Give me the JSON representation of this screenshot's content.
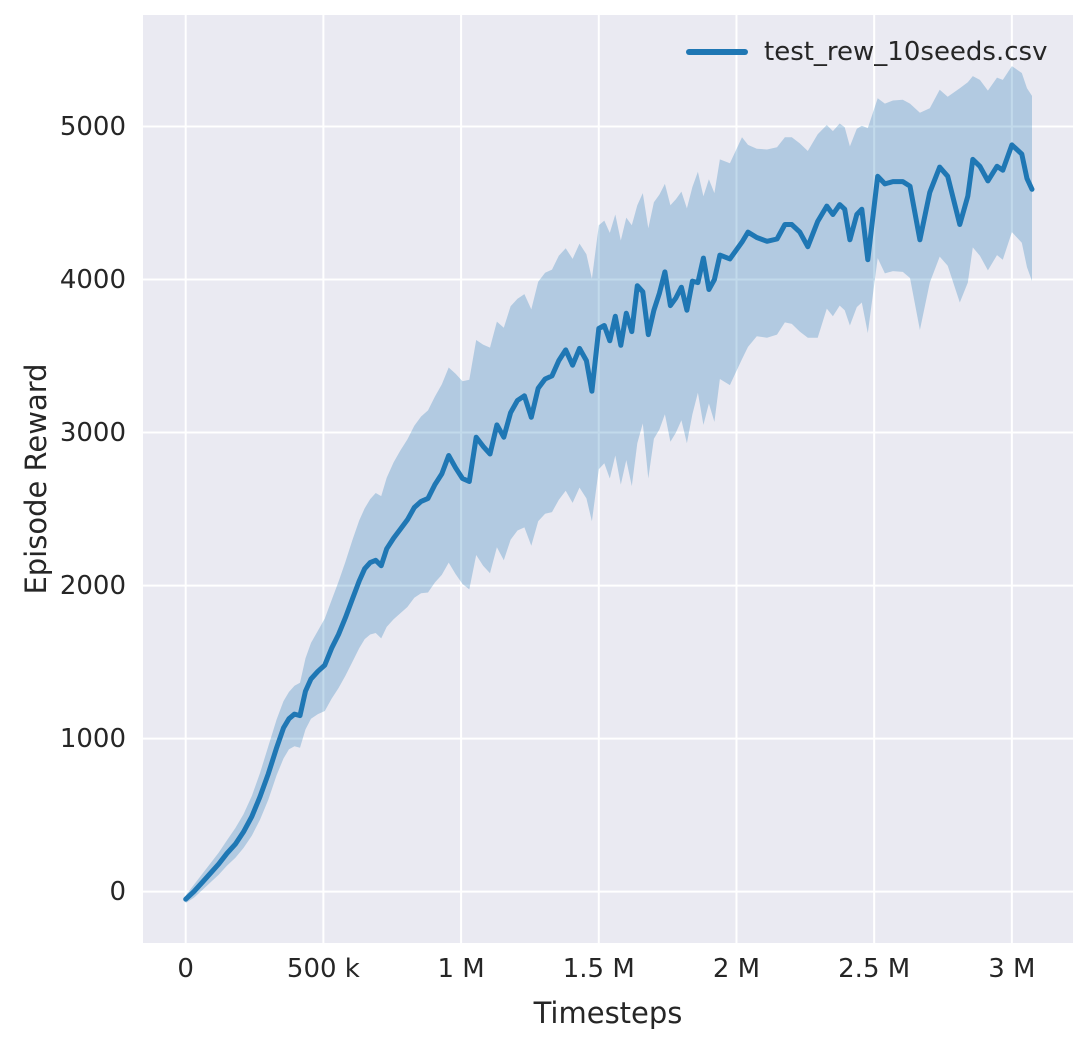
{
  "colors": {
    "figure_background": "#ffffff",
    "axes_background": "#eaeaf2",
    "grid": "#ffffff",
    "line": "#1f77b4",
    "band_fill": "#1f77b4",
    "band_opacity": 0.27,
    "text": "#262626"
  },
  "legend": {
    "entry": "test_rew_10seeds.csv",
    "position": "upper right"
  },
  "chart_data": {
    "type": "line",
    "title": "",
    "xlabel": "Timesteps",
    "ylabel": "Episode Reward",
    "x_unit": "thousand timesteps",
    "grid": true,
    "legend_position": "upper right",
    "xlim_k": [
      -155,
      3222
    ],
    "ylim": [
      -336,
      5729
    ],
    "x_ticks_k": [
      0,
      500,
      1000,
      1500,
      2000,
      2500,
      3000
    ],
    "x_tick_labels": [
      "0",
      "500 k",
      "1 M",
      "1.5 M",
      "2 M",
      "2.5 M",
      "3 M"
    ],
    "y_ticks": [
      0,
      1000,
      2000,
      3000,
      4000,
      5000
    ],
    "y_tick_labels": [
      "0",
      "1000",
      "2000",
      "3000",
      "4000",
      "5000"
    ],
    "series": [
      {
        "name": "test_rew_10seeds.csv",
        "x_k": [
          0,
          30,
          60,
          90,
          120,
          150,
          180,
          210,
          240,
          270,
          300,
          330,
          355,
          375,
          395,
          415,
          435,
          455,
          480,
          505,
          530,
          555,
          580,
          605,
          630,
          650,
          670,
          690,
          710,
          730,
          755,
          780,
          805,
          830,
          855,
          880,
          905,
          930,
          955,
          980,
          1005,
          1030,
          1055,
          1080,
          1105,
          1130,
          1155,
          1180,
          1205,
          1230,
          1255,
          1280,
          1305,
          1330,
          1355,
          1380,
          1405,
          1430,
          1455,
          1475,
          1500,
          1520,
          1540,
          1560,
          1580,
          1600,
          1620,
          1640,
          1660,
          1680,
          1700,
          1720,
          1740,
          1760,
          1780,
          1800,
          1820,
          1840,
          1860,
          1880,
          1900,
          1920,
          1940,
          1976,
          2020,
          2042,
          2074,
          2111,
          2147,
          2176,
          2201,
          2230,
          2259,
          2295,
          2328,
          2350,
          2375,
          2393,
          2412,
          2437,
          2455,
          2477,
          2513,
          2539,
          2568,
          2604,
          2630,
          2666,
          2702,
          2738,
          2767,
          2811,
          2840,
          2858,
          2884,
          2913,
          2946,
          2967,
          3000,
          3036,
          3055,
          3073
        ],
        "mean": [
          -50,
          0,
          60,
          120,
          180,
          250,
          310,
          390,
          490,
          620,
          770,
          940,
          1070,
          1130,
          1160,
          1150,
          1310,
          1390,
          1440,
          1480,
          1590,
          1680,
          1790,
          1910,
          2030,
          2110,
          2150,
          2165,
          2130,
          2240,
          2310,
          2370,
          2430,
          2510,
          2550,
          2570,
          2660,
          2730,
          2850,
          2770,
          2700,
          2680,
          2970,
          2910,
          2860,
          3050,
          2970,
          3130,
          3210,
          3240,
          3100,
          3290,
          3350,
          3370,
          3470,
          3540,
          3440,
          3550,
          3470,
          3270,
          3680,
          3700,
          3600,
          3760,
          3570,
          3780,
          3660,
          3960,
          3920,
          3640,
          3800,
          3910,
          4050,
          3830,
          3880,
          3950,
          3800,
          3990,
          3980,
          4140,
          3935,
          4000,
          4160,
          4135,
          4245,
          4310,
          4275,
          4250,
          4265,
          4360,
          4360,
          4310,
          4215,
          4380,
          4480,
          4425,
          4490,
          4460,
          4260,
          4425,
          4460,
          4130,
          4675,
          4625,
          4640,
          4640,
          4610,
          4260,
          4570,
          4735,
          4675,
          4360,
          4545,
          4785,
          4740,
          4645,
          4740,
          4715,
          4880,
          4820,
          4660,
          4590
        ],
        "lower": [
          -75,
          -40,
          10,
          60,
          110,
          170,
          220,
          285,
          365,
          470,
          600,
          760,
          870,
          930,
          950,
          940,
          1060,
          1130,
          1160,
          1180,
          1260,
          1330,
          1410,
          1500,
          1590,
          1650,
          1680,
          1690,
          1655,
          1730,
          1780,
          1820,
          1860,
          1920,
          1950,
          1955,
          2020,
          2070,
          2150,
          2075,
          2010,
          1975,
          2200,
          2130,
          2080,
          2250,
          2165,
          2300,
          2360,
          2380,
          2260,
          2420,
          2470,
          2480,
          2560,
          2620,
          2540,
          2640,
          2570,
          2420,
          2760,
          2800,
          2700,
          2850,
          2660,
          2820,
          2650,
          2930,
          3060,
          2700,
          2960,
          3020,
          3120,
          2940,
          3000,
          3080,
          2930,
          3120,
          3260,
          3050,
          3190,
          3070,
          3350,
          3310,
          3480,
          3560,
          3630,
          3620,
          3640,
          3720,
          3710,
          3660,
          3620,
          3620,
          3810,
          3760,
          3830,
          3800,
          3700,
          3820,
          3850,
          3650,
          4140,
          4040,
          4055,
          4050,
          4010,
          3670,
          3980,
          4150,
          4090,
          3850,
          3980,
          4210,
          4155,
          4060,
          4160,
          4130,
          4310,
          4240,
          4080,
          3990
        ],
        "upper": [
          -25,
          45,
          115,
          185,
          255,
          335,
          415,
          505,
          625,
          775,
          950,
          1125,
          1245,
          1305,
          1345,
          1365,
          1525,
          1625,
          1705,
          1785,
          1905,
          2025,
          2155,
          2295,
          2425,
          2505,
          2565,
          2605,
          2585,
          2705,
          2805,
          2885,
          2955,
          3045,
          3105,
          3145,
          3235,
          3315,
          3425,
          3385,
          3335,
          3345,
          3605,
          3575,
          3555,
          3725,
          3685,
          3825,
          3875,
          3905,
          3805,
          3985,
          4045,
          4065,
          4155,
          4205,
          4135,
          4235,
          4165,
          4005,
          4355,
          4385,
          4305,
          4425,
          4255,
          4405,
          4355,
          4485,
          4565,
          4335,
          4505,
          4555,
          4625,
          4485,
          4525,
          4575,
          4465,
          4605,
          4705,
          4545,
          4655,
          4565,
          4785,
          4760,
          4930,
          4880,
          4855,
          4850,
          4865,
          4930,
          4930,
          4890,
          4840,
          4950,
          5010,
          4970,
          5020,
          4995,
          4870,
          4985,
          5005,
          4990,
          5185,
          5150,
          5170,
          5175,
          5150,
          5090,
          5120,
          5240,
          5195,
          5250,
          5290,
          5330,
          5305,
          5235,
          5320,
          5305,
          5395,
          5350,
          5250,
          5200
        ]
      }
    ]
  }
}
